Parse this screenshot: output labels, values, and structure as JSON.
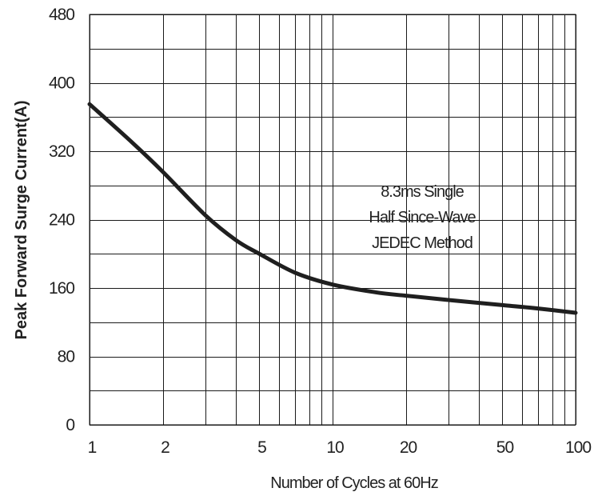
{
  "chart_data": {
    "type": "line",
    "x_scale": "log",
    "x_ticks": [
      1,
      2,
      5,
      10,
      20,
      50,
      100
    ],
    "x_tick_labels": [
      "1",
      "2",
      "5",
      "10",
      "20",
      "50",
      "100"
    ],
    "x_gridlines": [
      1,
      2,
      3,
      4,
      5,
      6,
      7,
      8,
      9,
      10,
      20,
      30,
      40,
      50,
      60,
      70,
      80,
      90,
      100
    ],
    "xlim": [
      1,
      100
    ],
    "y_ticks": [
      0,
      80,
      160,
      240,
      320,
      400,
      480
    ],
    "y_tick_labels": [
      "0",
      "80",
      "160",
      "240",
      "320",
      "400",
      "480"
    ],
    "y_gridlines": [
      0,
      40,
      80,
      120,
      160,
      200,
      240,
      280,
      320,
      360,
      400,
      440,
      480
    ],
    "ylim": [
      0,
      480
    ],
    "xlabel": "Number of Cycles at 60Hz",
    "ylabel": "Peak Forward Surge Current(A)",
    "grid": true,
    "series": [
      {
        "color": "#1f1f1f",
        "x": [
          1,
          1.5,
          2,
          3,
          4,
          5,
          7,
          10,
          15,
          20,
          30,
          50,
          70,
          100
        ],
        "y": [
          375,
          330,
          296,
          245,
          216,
          200,
          178,
          164,
          155,
          151,
          146,
          140,
          136,
          131
        ]
      }
    ],
    "annotation": {
      "lines": [
        "8.3ms Single",
        "Half Since-Wave",
        "JEDEC Method"
      ]
    }
  }
}
